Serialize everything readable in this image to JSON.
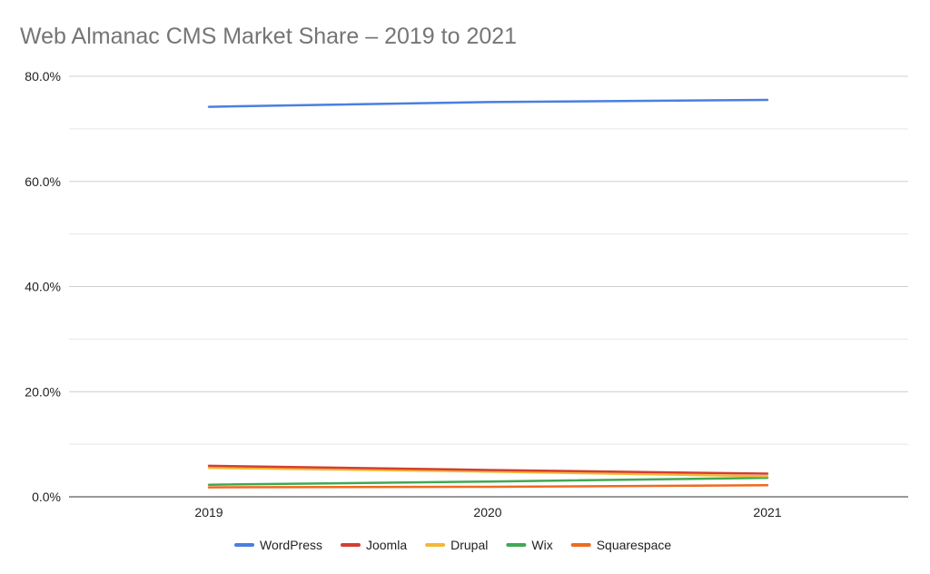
{
  "chart_data": {
    "type": "line",
    "title": "Web Almanac CMS Market Share – 2019 to 2021",
    "xlabel": "",
    "ylabel": "",
    "categories": [
      "2019",
      "2020",
      "2021"
    ],
    "ylim": [
      0,
      80
    ],
    "yticks": [
      "0.0%",
      "20.0%",
      "40.0%",
      "60.0%",
      "80.0%"
    ],
    "ytick_values": [
      0,
      20,
      40,
      60,
      80
    ],
    "grid": true,
    "minor_grid": true,
    "legend_position": "bottom",
    "series": [
      {
        "name": "WordPress",
        "color": "#4a7fe0",
        "values": [
          74.2,
          75.1,
          75.5
        ]
      },
      {
        "name": "Joomla",
        "color": "#d23f31",
        "values": [
          5.9,
          5.1,
          4.4
        ]
      },
      {
        "name": "Drupal",
        "color": "#f4b834",
        "values": [
          5.5,
          4.8,
          3.9
        ]
      },
      {
        "name": "Wix",
        "color": "#41a853",
        "values": [
          2.3,
          2.9,
          3.6
        ]
      },
      {
        "name": "Squarespace",
        "color": "#ee6a1f",
        "values": [
          1.8,
          1.9,
          2.2
        ]
      }
    ]
  }
}
